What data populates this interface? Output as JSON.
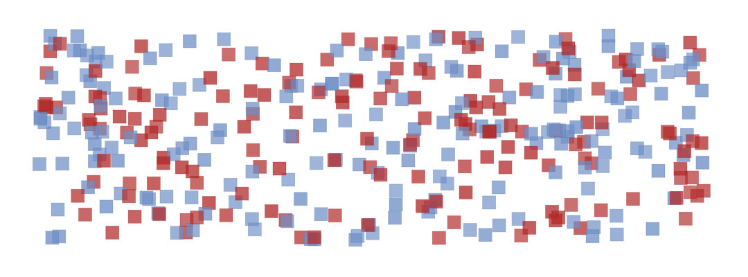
{
  "palette": {
    "red": "#b22a2a",
    "blue": "#6f8fc6",
    "background": "#ffffff"
  },
  "marker_shape": "square",
  "marker_opacity": 0.78,
  "seed": 20240517
}
